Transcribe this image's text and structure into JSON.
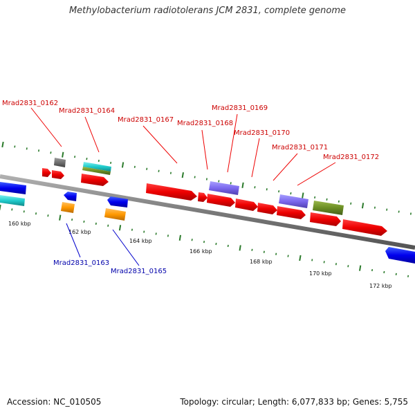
{
  "title": "Methylobacterium radiotolerans JCM 2831, complete genome",
  "footer": {
    "accession": "Accession: NC_010505",
    "summary": "Topology: circular; Length: 6,077,833 bp; Genes: 5,755"
  },
  "axis": {
    "ticks": [
      "160 kbp",
      "162 kbp",
      "164 kbp",
      "166 kbp",
      "168 kbp",
      "170 kbp",
      "172 kbp"
    ]
  },
  "colors": {
    "forward_label": "#cc0000",
    "reverse_label": "#0000aa",
    "backbone": "#888888",
    "tick": "#2a7a2a"
  },
  "gene_labels": {
    "forward": [
      "Mrad2831_0162",
      "Mrad2831_0164",
      "Mrad2831_0167",
      "Mrad2831_0168",
      "Mrad2831_0169",
      "Mrad2831_0170",
      "Mrad2831_0171",
      "Mrad2831_0172"
    ],
    "reverse": [
      "Mrad2831_0163",
      "Mrad2831_0165"
    ]
  }
}
